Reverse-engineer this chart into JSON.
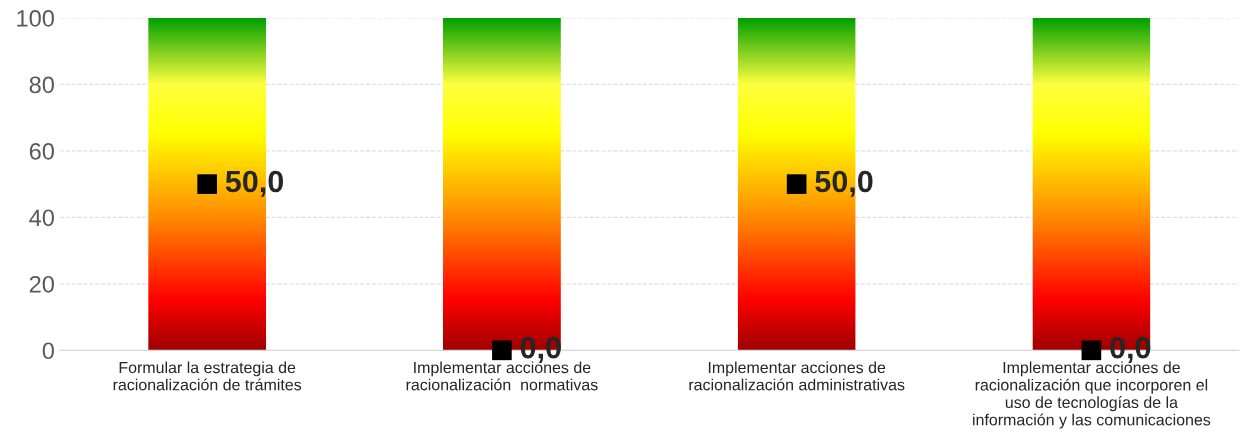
{
  "chart_data": {
    "type": "scatter",
    "categories": [
      "Formular la estrategia de\nracionalización de trámites",
      "Implementar acciones de\nracionalización  normativas",
      "Implementar acciones de\nracionalización administrativas",
      "Implementar acciones de\nracionalización que incorporen el\nuso de tecnologías de la\ninformación y las comunicaciones"
    ],
    "series": [
      {
        "type": "bar",
        "values": [
          100,
          100,
          100,
          100
        ]
      },
      {
        "color": "#000000",
        "values": [
          50,
          0,
          50,
          0
        ],
        "value_labels": [
          "50,0",
          "0,0",
          "50,0",
          "0,0"
        ]
      }
    ],
    "ylim": [
      0,
      100
    ],
    "yticks": [
      0,
      20,
      40,
      60,
      80,
      100
    ],
    "grid": "y",
    "legend": false,
    "marker": "square"
  }
}
